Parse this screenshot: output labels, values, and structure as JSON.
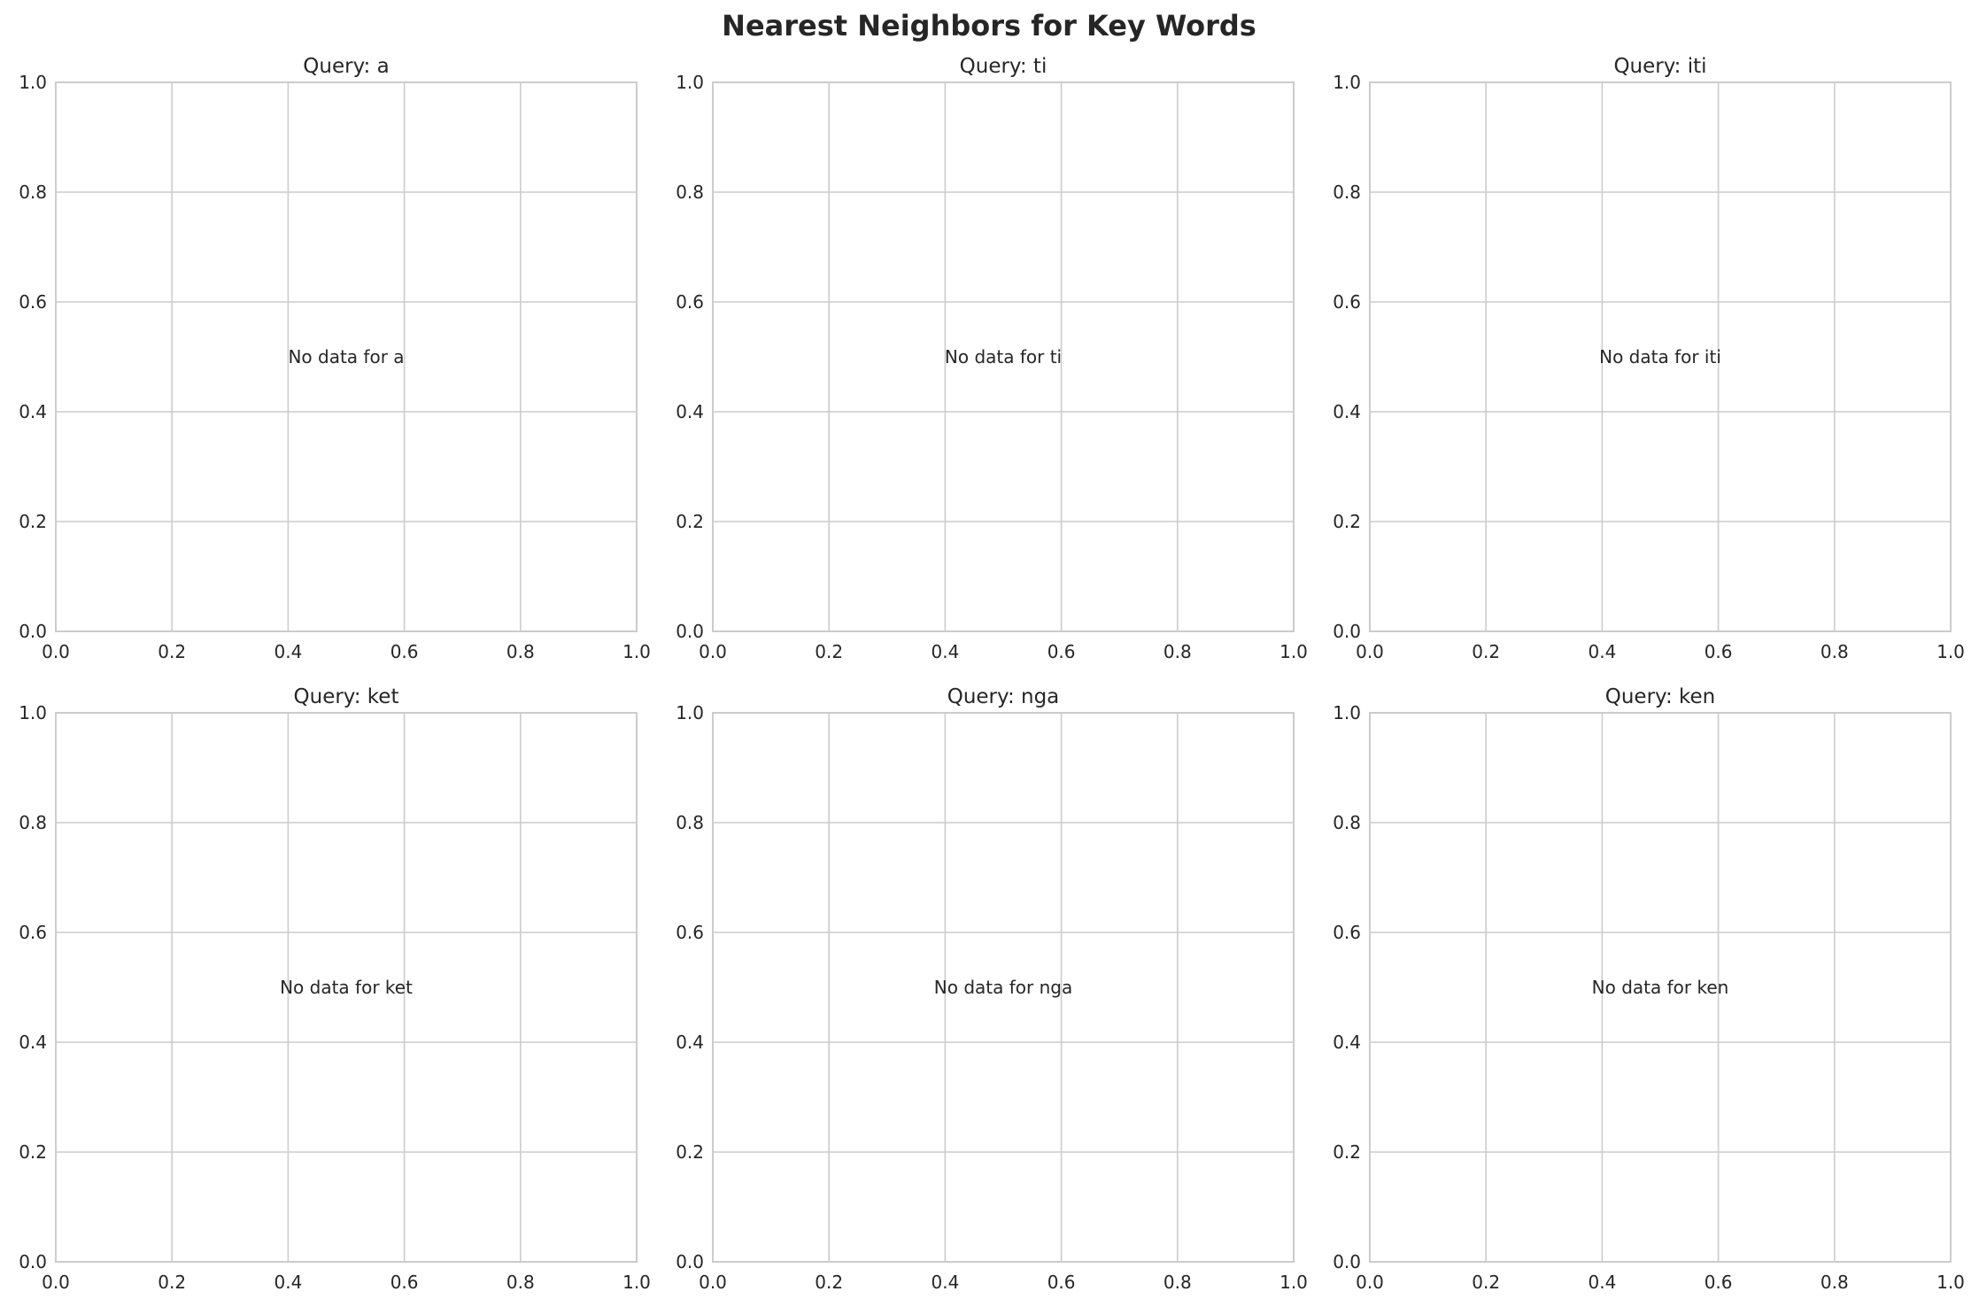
{
  "chart_data": {
    "title": "Nearest Neighbors for Key Words",
    "type": "scatter",
    "grid": true,
    "colors": {
      "grid": "#cccccc",
      "spine": "#cccccc",
      "text": "#262626",
      "background": "#ffffff"
    },
    "panels": [
      {
        "title": "Query: a",
        "message": "No data for a",
        "xlim": [
          0,
          1
        ],
        "ylim": [
          0,
          1
        ],
        "xticks": [
          "0.0",
          "0.2",
          "0.4",
          "0.6",
          "0.8",
          "1.0"
        ],
        "yticks": [
          "0.0",
          "0.2",
          "0.4",
          "0.6",
          "0.8",
          "1.0"
        ],
        "points": []
      },
      {
        "title": "Query: ti",
        "message": "No data for ti",
        "xlim": [
          0,
          1
        ],
        "ylim": [
          0,
          1
        ],
        "xticks": [
          "0.0",
          "0.2",
          "0.4",
          "0.6",
          "0.8",
          "1.0"
        ],
        "yticks": [
          "0.0",
          "0.2",
          "0.4",
          "0.6",
          "0.8",
          "1.0"
        ],
        "points": []
      },
      {
        "title": "Query: iti",
        "message": "No data for iti",
        "xlim": [
          0,
          1
        ],
        "ylim": [
          0,
          1
        ],
        "xticks": [
          "0.0",
          "0.2",
          "0.4",
          "0.6",
          "0.8",
          "1.0"
        ],
        "yticks": [
          "0.0",
          "0.2",
          "0.4",
          "0.6",
          "0.8",
          "1.0"
        ],
        "points": []
      },
      {
        "title": "Query: ket",
        "message": "No data for ket",
        "xlim": [
          0,
          1
        ],
        "ylim": [
          0,
          1
        ],
        "xticks": [
          "0.0",
          "0.2",
          "0.4",
          "0.6",
          "0.8",
          "1.0"
        ],
        "yticks": [
          "0.0",
          "0.2",
          "0.4",
          "0.6",
          "0.8",
          "1.0"
        ],
        "points": []
      },
      {
        "title": "Query: nga",
        "message": "No data for nga",
        "xlim": [
          0,
          1
        ],
        "ylim": [
          0,
          1
        ],
        "xticks": [
          "0.0",
          "0.2",
          "0.4",
          "0.6",
          "0.8",
          "1.0"
        ],
        "yticks": [
          "0.0",
          "0.2",
          "0.4",
          "0.6",
          "0.8",
          "1.0"
        ],
        "points": []
      },
      {
        "title": "Query: ken",
        "message": "No data for ken",
        "xlim": [
          0,
          1
        ],
        "ylim": [
          0,
          1
        ],
        "xticks": [
          "0.0",
          "0.2",
          "0.4",
          "0.6",
          "0.8",
          "1.0"
        ],
        "yticks": [
          "0.0",
          "0.2",
          "0.4",
          "0.6",
          "0.8",
          "1.0"
        ],
        "points": []
      }
    ]
  }
}
